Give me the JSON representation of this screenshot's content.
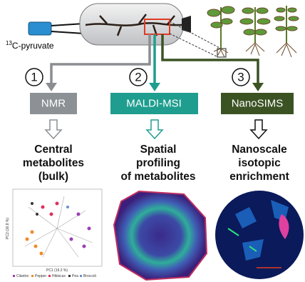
{
  "pyruvate": {
    "sup": "13",
    "label": "C-pyruvate"
  },
  "steps": [
    {
      "number": "1",
      "method": "NMR",
      "result": [
        "Central",
        "metabolites",
        "(bulk)"
      ]
    },
    {
      "number": "2",
      "method": "MALDI-MSI",
      "result": [
        "Spatial",
        "profiling",
        "of metabolites"
      ]
    },
    {
      "number": "3",
      "method": "NanoSIMS",
      "result": [
        "Nanoscale",
        "isotopic",
        "enrichment"
      ]
    }
  ],
  "pca": {
    "xlabel": "PC1 (19.2 %)",
    "ylabel": "PC2 (16.8 %)",
    "legend": [
      "Cilantro",
      "Pepper",
      "Hibiscus",
      "Pea",
      "Broccoli"
    ]
  }
}
